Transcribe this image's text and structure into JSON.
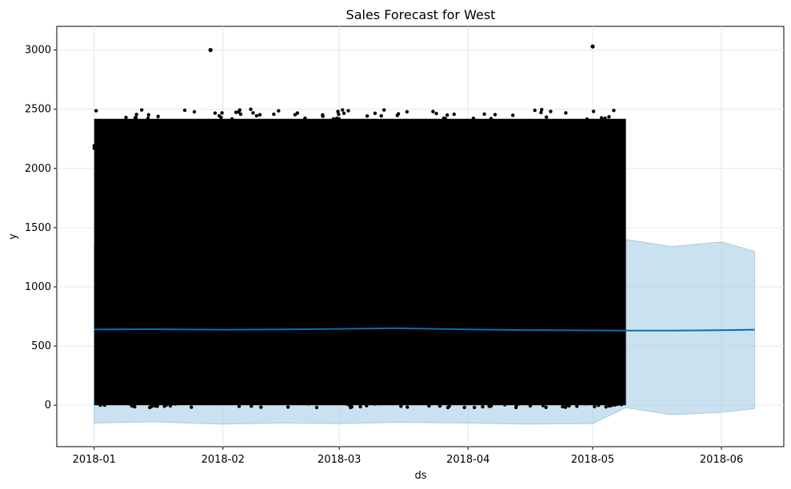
{
  "chart_data": {
    "type": "scatter",
    "title": "Sales Forecast for West",
    "xlabel": "ds",
    "ylabel": "y",
    "x_ticks": [
      "2018-01",
      "2018-02",
      "2018-03",
      "2018-04",
      "2018-05",
      "2018-06"
    ],
    "y_ticks": [
      0,
      500,
      1000,
      1500,
      2000,
      2500,
      3000
    ],
    "xlim": [
      "2017-12-23",
      "2018-06-16"
    ],
    "ylim": [
      -350,
      3200
    ],
    "grid": true,
    "observed_range": {
      "start": "2018-01-01",
      "end": "2018-05-09",
      "y_min": 0,
      "y_max": 2500
    },
    "outliers": [
      {
        "x": "2018-01-29",
        "y": 3000
      },
      {
        "x": "2018-05-01",
        "y": 3030
      }
    ],
    "forecast": {
      "x": [
        "2018-01-01",
        "2018-01-15",
        "2018-02-01",
        "2018-02-15",
        "2018-03-01",
        "2018-03-15",
        "2018-04-01",
        "2018-04-15",
        "2018-05-01",
        "2018-05-09",
        "2018-05-20",
        "2018-06-01",
        "2018-06-09"
      ],
      "yhat": [
        640,
        642,
        638,
        641,
        645,
        650,
        640,
        635,
        632,
        630,
        630,
        634,
        638
      ],
      "upper": [
        1350,
        1380,
        1360,
        1370,
        1350,
        1390,
        1360,
        1370,
        1350,
        1400,
        1340,
        1380,
        1300
      ],
      "lower": [
        -150,
        -140,
        -160,
        -150,
        -155,
        -145,
        -150,
        -160,
        -155,
        -20,
        -80,
        -60,
        -30
      ]
    },
    "colors": {
      "points": "#000000",
      "forecast_line": "#0072b2",
      "uncertainty": "#a6cde6"
    }
  }
}
